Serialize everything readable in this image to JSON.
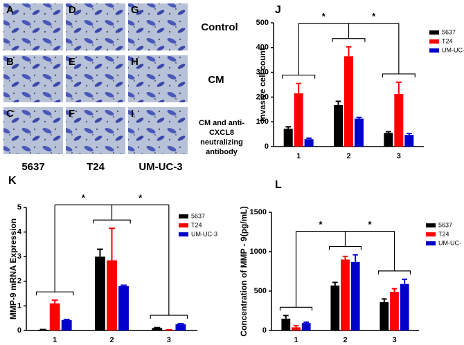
{
  "figure": {
    "panels": [
      "A",
      "D",
      "G",
      "B",
      "E",
      "H",
      "C",
      "F",
      "I"
    ],
    "column_labels": [
      "5637",
      "T24",
      "UM-UC-3"
    ],
    "row_labels": [
      "Control",
      "CM"
    ],
    "row_label_3": [
      "CM and anti-",
      "CXCL8",
      "neutralizing",
      "antibody"
    ]
  },
  "chart_data": [
    {
      "type": "bar",
      "panel_label": "J",
      "y_label": "Invasive cell count",
      "categories": [
        "1",
        "2",
        "3"
      ],
      "series": [
        {
          "name": "5637",
          "color": "#000000",
          "values": [
            72,
            168,
            55
          ],
          "errors": [
            8,
            15,
            5
          ]
        },
        {
          "name": "T24",
          "color": "#ff0000",
          "values": [
            215,
            365,
            212
          ],
          "errors": [
            40,
            38,
            48
          ]
        },
        {
          "name": "UM-UC-",
          "color": "#0000cc",
          "values": [
            30,
            113,
            47
          ],
          "errors": [
            4,
            5,
            6
          ]
        }
      ],
      "ylim": [
        0,
        500
      ],
      "yticks": [
        0,
        100,
        200,
        300,
        400,
        500
      ],
      "annotations": [
        "*",
        "*"
      ]
    },
    {
      "type": "bar",
      "panel_label": "K",
      "y_label": "MMP-9 mRNA Expression",
      "categories": [
        "1",
        "2",
        "3"
      ],
      "series": [
        {
          "name": "5637",
          "color": "#000000",
          "values": [
            0.03,
            3.0,
            0.1
          ],
          "errors": [
            0.01,
            0.3,
            0.02
          ]
        },
        {
          "name": "T24",
          "color": "#ff0000",
          "values": [
            1.1,
            2.85,
            0.02
          ],
          "errors": [
            0.13,
            1.3,
            0.01
          ]
        },
        {
          "name": "UM-UC-3",
          "color": "#0000cc",
          "values": [
            0.42,
            1.8,
            0.25
          ],
          "errors": [
            0.03,
            0.04,
            0.03
          ]
        }
      ],
      "ylim": [
        0,
        5
      ],
      "yticks": [
        0,
        1,
        2,
        3,
        4,
        5
      ],
      "annotations": [
        "*",
        "*"
      ]
    },
    {
      "type": "bar",
      "panel_label": "L",
      "y_label": "Concentration of MMP - 9(pg/mL)",
      "categories": [
        "1",
        "2",
        "3"
      ],
      "series": [
        {
          "name": "5637",
          "color": "#000000",
          "values": [
            150,
            570,
            360
          ],
          "errors": [
            40,
            40,
            40
          ]
        },
        {
          "name": "T24",
          "color": "#ff0000",
          "values": [
            40,
            900,
            490
          ],
          "errors": [
            20,
            40,
            40
          ]
        },
        {
          "name": "UM-UC-",
          "color": "#0000cc",
          "values": [
            95,
            870,
            590
          ],
          "errors": [
            10,
            90,
            60
          ]
        }
      ],
      "ylim": [
        0,
        1500
      ],
      "yticks": [
        0,
        500,
        1000,
        1500
      ],
      "annotations": [
        "*",
        "*"
      ]
    }
  ]
}
